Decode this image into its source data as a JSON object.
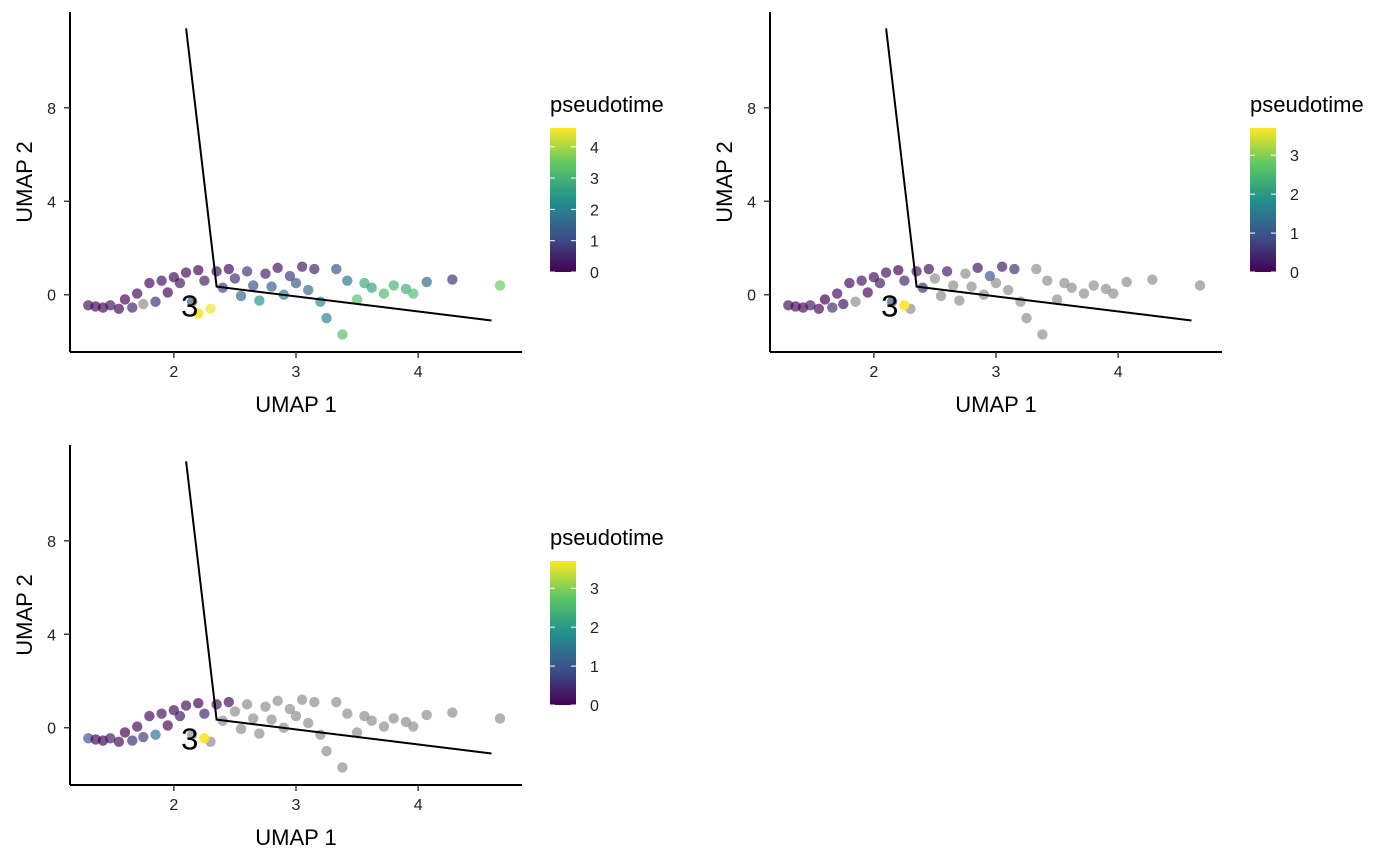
{
  "chart_data": [
    {
      "type": "scatter",
      "xlabel": "UMAP 1",
      "ylabel": "UMAP 2",
      "x_ticks": [
        2,
        3,
        4
      ],
      "y_ticks": [
        0,
        4,
        8
      ],
      "xlim": [
        1.15,
        4.85
      ],
      "ylim": [
        -2.45,
        12.1
      ],
      "legend": {
        "title": "pseudotime",
        "ticks": [
          0,
          1,
          2,
          3,
          4
        ],
        "max": 4.6,
        "position": "right"
      },
      "trajectory": {
        "points": [
          [
            2.1,
            11.4
          ],
          [
            2.35,
            0.35
          ],
          [
            4.6,
            -1.1
          ]
        ],
        "label": "3",
        "label_at": [
          2.13,
          -0.5
        ]
      },
      "highlight_points": [
        {
          "x": 2.2,
          "y": -0.8,
          "t": 4.6
        }
      ],
      "points": [
        {
          "x": 1.3,
          "y": -0.45,
          "t": 0.2
        },
        {
          "x": 1.36,
          "y": -0.5,
          "t": 0.1
        },
        {
          "x": 1.42,
          "y": -0.55,
          "t": 0.05
        },
        {
          "x": 1.48,
          "y": -0.45,
          "t": 0.3
        },
        {
          "x": 1.55,
          "y": -0.6,
          "t": 0.1
        },
        {
          "x": 1.6,
          "y": -0.2,
          "t": 0.0
        },
        {
          "x": 1.66,
          "y": -0.55,
          "t": 0.5
        },
        {
          "x": 1.7,
          "y": 0.05,
          "t": 0.1
        },
        {
          "x": 1.75,
          "y": -0.4,
          "t": null
        },
        {
          "x": 1.8,
          "y": 0.5,
          "t": 0.1
        },
        {
          "x": 1.85,
          "y": -0.3,
          "t": 0.6
        },
        {
          "x": 1.9,
          "y": 0.6,
          "t": 0.2
        },
        {
          "x": 1.95,
          "y": 0.1,
          "t": 0.05
        },
        {
          "x": 2.0,
          "y": 0.75,
          "t": 0.1
        },
        {
          "x": 2.05,
          "y": 0.5,
          "t": 0.3
        },
        {
          "x": 2.1,
          "y": 0.95,
          "t": 0.15
        },
        {
          "x": 2.15,
          "y": -0.3,
          "t": 1.2
        },
        {
          "x": 2.2,
          "y": 1.05,
          "t": 0.0
        },
        {
          "x": 2.25,
          "y": 0.6,
          "t": 0.4
        },
        {
          "x": 2.3,
          "y": -0.6,
          "t": 4.5
        },
        {
          "x": 2.35,
          "y": 1.0,
          "t": 0.2
        },
        {
          "x": 2.4,
          "y": 0.3,
          "t": 0.9
        },
        {
          "x": 2.45,
          "y": 1.1,
          "t": 0.1
        },
        {
          "x": 2.5,
          "y": 0.7,
          "t": 0.6
        },
        {
          "x": 2.55,
          "y": -0.05,
          "t": 1.5
        },
        {
          "x": 2.6,
          "y": 1.0,
          "t": 0.7
        },
        {
          "x": 2.65,
          "y": 0.4,
          "t": 1.1
        },
        {
          "x": 2.7,
          "y": -0.25,
          "t": 2.3
        },
        {
          "x": 2.75,
          "y": 0.9,
          "t": 0.4
        },
        {
          "x": 2.8,
          "y": 0.35,
          "t": 1.4
        },
        {
          "x": 2.85,
          "y": 1.15,
          "t": 0.2
        },
        {
          "x": 2.9,
          "y": 0.0,
          "t": 1.9
        },
        {
          "x": 2.95,
          "y": 0.8,
          "t": 0.8
        },
        {
          "x": 3.0,
          "y": 0.5,
          "t": 1.2
        },
        {
          "x": 3.05,
          "y": 1.2,
          "t": 0.3
        },
        {
          "x": 3.1,
          "y": 0.2,
          "t": 1.6
        },
        {
          "x": 3.15,
          "y": 1.1,
          "t": 0.5
        },
        {
          "x": 3.2,
          "y": -0.3,
          "t": 2.2
        },
        {
          "x": 3.25,
          "y": -1.0,
          "t": 2.0
        },
        {
          "x": 3.33,
          "y": 1.1,
          "t": 1.1
        },
        {
          "x": 3.38,
          "y": -1.7,
          "t": 3.2
        },
        {
          "x": 3.42,
          "y": 0.6,
          "t": 1.8
        },
        {
          "x": 3.5,
          "y": -0.2,
          "t": 3.3
        },
        {
          "x": 3.56,
          "y": 0.5,
          "t": 2.8
        },
        {
          "x": 3.62,
          "y": 0.3,
          "t": 2.6
        },
        {
          "x": 3.72,
          "y": 0.05,
          "t": 3.1
        },
        {
          "x": 3.8,
          "y": 0.4,
          "t": 3.0
        },
        {
          "x": 3.9,
          "y": 0.25,
          "t": 2.9
        },
        {
          "x": 3.96,
          "y": 0.05,
          "t": 3.2
        },
        {
          "x": 4.07,
          "y": 0.55,
          "t": 1.5
        },
        {
          "x": 4.28,
          "y": 0.65,
          "t": 0.7
        },
        {
          "x": 4.67,
          "y": 0.4,
          "t": 3.5
        }
      ]
    },
    {
      "type": "scatter",
      "xlabel": "UMAP 1",
      "ylabel": "UMAP 2",
      "x_ticks": [
        2,
        3,
        4
      ],
      "y_ticks": [
        0,
        4,
        8
      ],
      "xlim": [
        1.15,
        4.85
      ],
      "ylim": [
        -2.45,
        12.1
      ],
      "legend": {
        "title": "pseudotime",
        "ticks": [
          0,
          1,
          2,
          3
        ],
        "max": 3.7,
        "position": "right"
      },
      "trajectory": {
        "points": [
          [
            2.1,
            11.4
          ],
          [
            2.35,
            0.35
          ],
          [
            4.6,
            -1.1
          ]
        ],
        "label": "3",
        "label_at": [
          2.13,
          -0.5
        ]
      },
      "highlight_points": [
        {
          "x": 2.25,
          "y": -0.45,
          "t": 3.7
        }
      ],
      "points": [
        {
          "x": 1.3,
          "y": -0.45,
          "t": 0.2
        },
        {
          "x": 1.36,
          "y": -0.5,
          "t": 0.1
        },
        {
          "x": 1.42,
          "y": -0.55,
          "t": 0.05
        },
        {
          "x": 1.48,
          "y": -0.45,
          "t": 0.3
        },
        {
          "x": 1.55,
          "y": -0.6,
          "t": 0.1
        },
        {
          "x": 1.6,
          "y": -0.2,
          "t": 0.0
        },
        {
          "x": 1.66,
          "y": -0.55,
          "t": 0.5
        },
        {
          "x": 1.7,
          "y": 0.05,
          "t": 0.1
        },
        {
          "x": 1.75,
          "y": -0.4,
          "t": 0.2
        },
        {
          "x": 1.8,
          "y": 0.5,
          "t": 0.1
        },
        {
          "x": 1.85,
          "y": -0.3,
          "t": null
        },
        {
          "x": 1.9,
          "y": 0.6,
          "t": 0.2
        },
        {
          "x": 1.95,
          "y": 0.1,
          "t": 0.05
        },
        {
          "x": 2.0,
          "y": 0.75,
          "t": 0.1
        },
        {
          "x": 2.05,
          "y": 0.5,
          "t": 0.3
        },
        {
          "x": 2.1,
          "y": 0.95,
          "t": 0.15
        },
        {
          "x": 2.15,
          "y": -0.3,
          "t": 0.9
        },
        {
          "x": 2.2,
          "y": 1.05,
          "t": 0.0
        },
        {
          "x": 2.25,
          "y": 0.6,
          "t": 0.4
        },
        {
          "x": 2.3,
          "y": -0.6,
          "t": null
        },
        {
          "x": 2.35,
          "y": 1.0,
          "t": 0.2
        },
        {
          "x": 2.4,
          "y": 0.3,
          "t": 0.5
        },
        {
          "x": 2.45,
          "y": 1.1,
          "t": 0.1
        },
        {
          "x": 2.5,
          "y": 0.7,
          "t": null
        },
        {
          "x": 2.55,
          "y": -0.05,
          "t": null
        },
        {
          "x": 2.6,
          "y": 1.0,
          "t": 0.3
        },
        {
          "x": 2.65,
          "y": 0.4,
          "t": null
        },
        {
          "x": 2.7,
          "y": -0.25,
          "t": null
        },
        {
          "x": 2.75,
          "y": 0.9,
          "t": null
        },
        {
          "x": 2.8,
          "y": 0.35,
          "t": null
        },
        {
          "x": 2.85,
          "y": 1.15,
          "t": 0.2
        },
        {
          "x": 2.9,
          "y": 0.0,
          "t": null
        },
        {
          "x": 2.95,
          "y": 0.8,
          "t": 1.0
        },
        {
          "x": 3.0,
          "y": 0.5,
          "t": null
        },
        {
          "x": 3.05,
          "y": 1.2,
          "t": 0.3
        },
        {
          "x": 3.1,
          "y": 0.2,
          "t": null
        },
        {
          "x": 3.15,
          "y": 1.1,
          "t": 0.5
        },
        {
          "x": 3.2,
          "y": -0.3,
          "t": null
        },
        {
          "x": 3.25,
          "y": -1.0,
          "t": null
        },
        {
          "x": 3.33,
          "y": 1.1,
          "t": null
        },
        {
          "x": 3.38,
          "y": -1.7,
          "t": null
        },
        {
          "x": 3.42,
          "y": 0.6,
          "t": null
        },
        {
          "x": 3.5,
          "y": -0.2,
          "t": null
        },
        {
          "x": 3.56,
          "y": 0.5,
          "t": null
        },
        {
          "x": 3.62,
          "y": 0.3,
          "t": null
        },
        {
          "x": 3.72,
          "y": 0.05,
          "t": null
        },
        {
          "x": 3.8,
          "y": 0.4,
          "t": null
        },
        {
          "x": 3.9,
          "y": 0.25,
          "t": null
        },
        {
          "x": 3.96,
          "y": 0.05,
          "t": null
        },
        {
          "x": 4.07,
          "y": 0.55,
          "t": null
        },
        {
          "x": 4.28,
          "y": 0.65,
          "t": null
        },
        {
          "x": 4.67,
          "y": 0.4,
          "t": null
        }
      ]
    },
    {
      "type": "scatter",
      "xlabel": "UMAP 1",
      "ylabel": "UMAP 2",
      "x_ticks": [
        2,
        3,
        4
      ],
      "y_ticks": [
        0,
        4,
        8
      ],
      "xlim": [
        1.15,
        4.85
      ],
      "ylim": [
        -2.45,
        12.1
      ],
      "legend": {
        "title": "pseudotime",
        "ticks": [
          0,
          1,
          2,
          3
        ],
        "max": 3.7,
        "position": "right"
      },
      "trajectory": {
        "points": [
          [
            2.1,
            11.4
          ],
          [
            2.35,
            0.35
          ],
          [
            4.6,
            -1.1
          ]
        ],
        "label": "3",
        "label_at": [
          2.13,
          -0.5
        ]
      },
      "highlight_points": [
        {
          "x": 2.25,
          "y": -0.45,
          "t": 3.7
        }
      ],
      "points": [
        {
          "x": 1.3,
          "y": -0.45,
          "t": 0.9
        },
        {
          "x": 1.36,
          "y": -0.5,
          "t": 0.1
        },
        {
          "x": 1.42,
          "y": -0.55,
          "t": 0.05
        },
        {
          "x": 1.48,
          "y": -0.45,
          "t": 0.3
        },
        {
          "x": 1.55,
          "y": -0.6,
          "t": 0.1
        },
        {
          "x": 1.6,
          "y": -0.2,
          "t": 0.0
        },
        {
          "x": 1.66,
          "y": -0.55,
          "t": 0.5
        },
        {
          "x": 1.7,
          "y": 0.05,
          "t": 0.1
        },
        {
          "x": 1.75,
          "y": -0.4,
          "t": 0.6
        },
        {
          "x": 1.8,
          "y": 0.5,
          "t": 0.1
        },
        {
          "x": 1.85,
          "y": -0.3,
          "t": 1.4
        },
        {
          "x": 1.9,
          "y": 0.6,
          "t": 0.2
        },
        {
          "x": 1.95,
          "y": 0.1,
          "t": 0.05
        },
        {
          "x": 2.0,
          "y": 0.75,
          "t": 0.1
        },
        {
          "x": 2.05,
          "y": 0.5,
          "t": 0.3
        },
        {
          "x": 2.1,
          "y": 0.95,
          "t": 0.15
        },
        {
          "x": 2.15,
          "y": -0.3,
          "t": null
        },
        {
          "x": 2.2,
          "y": 1.05,
          "t": 0.0
        },
        {
          "x": 2.25,
          "y": 0.6,
          "t": 0.4
        },
        {
          "x": 2.3,
          "y": -0.6,
          "t": null
        },
        {
          "x": 2.35,
          "y": 1.0,
          "t": 0.2
        },
        {
          "x": 2.4,
          "y": 0.3,
          "t": null
        },
        {
          "x": 2.45,
          "y": 1.1,
          "t": 0.1
        },
        {
          "x": 2.5,
          "y": 0.7,
          "t": null
        },
        {
          "x": 2.55,
          "y": -0.05,
          "t": null
        },
        {
          "x": 2.6,
          "y": 1.0,
          "t": null
        },
        {
          "x": 2.65,
          "y": 0.4,
          "t": null
        },
        {
          "x": 2.7,
          "y": -0.25,
          "t": null
        },
        {
          "x": 2.75,
          "y": 0.9,
          "t": null
        },
        {
          "x": 2.8,
          "y": 0.35,
          "t": null
        },
        {
          "x": 2.85,
          "y": 1.15,
          "t": null
        },
        {
          "x": 2.9,
          "y": 0.0,
          "t": null
        },
        {
          "x": 2.95,
          "y": 0.8,
          "t": null
        },
        {
          "x": 3.0,
          "y": 0.5,
          "t": null
        },
        {
          "x": 3.05,
          "y": 1.2,
          "t": null
        },
        {
          "x": 3.1,
          "y": 0.2,
          "t": null
        },
        {
          "x": 3.15,
          "y": 1.1,
          "t": null
        },
        {
          "x": 3.2,
          "y": -0.3,
          "t": null
        },
        {
          "x": 3.25,
          "y": -1.0,
          "t": null
        },
        {
          "x": 3.33,
          "y": 1.1,
          "t": null
        },
        {
          "x": 3.38,
          "y": -1.7,
          "t": null
        },
        {
          "x": 3.42,
          "y": 0.6,
          "t": null
        },
        {
          "x": 3.5,
          "y": -0.2,
          "t": null
        },
        {
          "x": 3.56,
          "y": 0.5,
          "t": null
        },
        {
          "x": 3.62,
          "y": 0.3,
          "t": null
        },
        {
          "x": 3.72,
          "y": 0.05,
          "t": null
        },
        {
          "x": 3.8,
          "y": 0.4,
          "t": null
        },
        {
          "x": 3.9,
          "y": 0.25,
          "t": null
        },
        {
          "x": 3.96,
          "y": 0.05,
          "t": null
        },
        {
          "x": 4.07,
          "y": 0.55,
          "t": null
        },
        {
          "x": 4.28,
          "y": 0.65,
          "t": null
        },
        {
          "x": 4.67,
          "y": 0.4,
          "t": null
        }
      ]
    }
  ],
  "colors": {
    "na_point": "#8c8c8c",
    "line": "#000000",
    "viridis": [
      "#440154",
      "#3b528b",
      "#21908c",
      "#5dc863",
      "#fde725"
    ]
  }
}
